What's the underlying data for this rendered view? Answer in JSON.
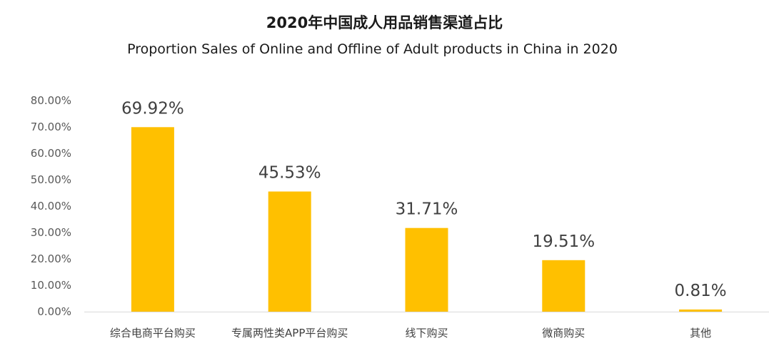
{
  "title": "2020年中国成人用品销售渠道占比",
  "subtitle": "Proportion Sales of Online and Offline of Adult products in China in 2020",
  "colors": {
    "bar": "#FFC000",
    "axis": "#D9D9D9"
  },
  "chart_data": {
    "type": "bar",
    "title": "2020年中国成人用品销售渠道占比",
    "subtitle": "Proportion Sales of Online and Offline of Adult products in China in 2020",
    "xlabel": "",
    "ylabel": "",
    "categories": [
      "综合电商平台购买",
      "专属两性类APP平台购买",
      "线下购买",
      "微商购买",
      "其他"
    ],
    "values": [
      69.92,
      45.53,
      31.71,
      19.51,
      0.81
    ],
    "data_labels": [
      "69.92%",
      "45.53%",
      "31.71%",
      "19.51%",
      "0.81%"
    ],
    "ylim": [
      0,
      80
    ],
    "y_ticks": [
      0,
      10,
      20,
      30,
      40,
      50,
      60,
      70,
      80
    ],
    "y_tick_labels": [
      "0.00%",
      "10.00%",
      "20.00%",
      "30.00%",
      "40.00%",
      "50.00%",
      "60.00%",
      "70.00%",
      "80.00%"
    ],
    "grid": false,
    "legend": "none"
  }
}
